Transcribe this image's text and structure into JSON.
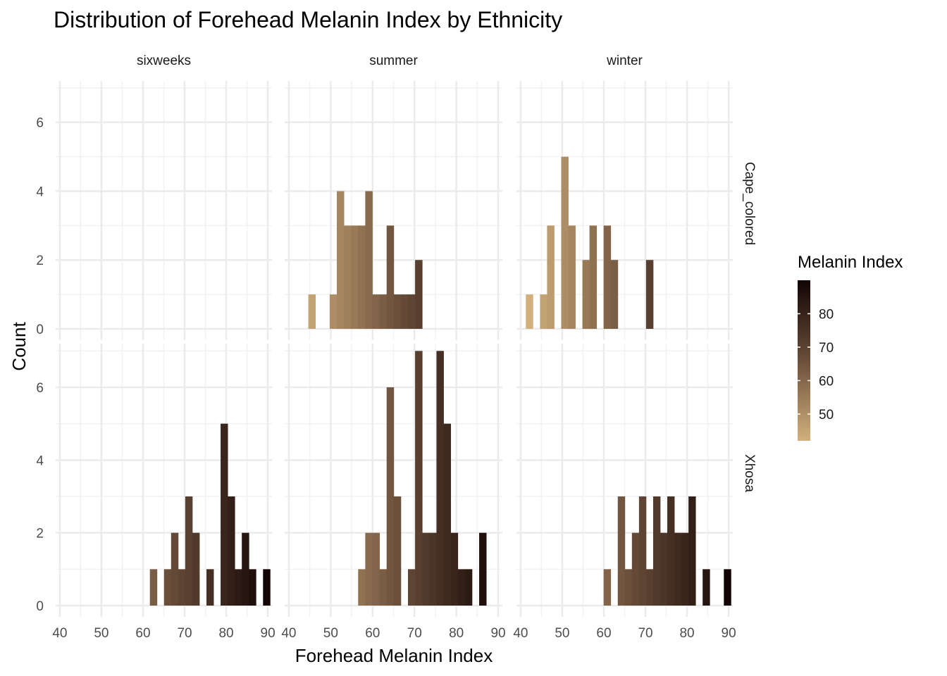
{
  "chart_data": {
    "type": "histogram-faceted",
    "title": "Distribution of Forehead Melanin Index by Ethnicity",
    "xlabel": "Forehead Melanin Index",
    "ylabel": "Count",
    "facet_columns": [
      "sixweeks",
      "summer",
      "winter"
    ],
    "facet_rows": [
      "Cape_colored",
      "Xhosa"
    ],
    "xlim": [
      39,
      91
    ],
    "ylim": [
      0,
      7.2
    ],
    "x_ticks": [
      40,
      50,
      60,
      70,
      80,
      90
    ],
    "y_ticks": [
      0,
      2,
      4,
      6
    ],
    "bin_width": 1.7,
    "legend": {
      "title": "Melanin Index",
      "range": [
        42,
        90
      ],
      "ticks": [
        50,
        60,
        70,
        80
      ],
      "color_low": "#d2b07e",
      "color_mid": "#6a4f3a",
      "color_high": "#120404"
    },
    "panels": [
      {
        "row": "Cape_colored",
        "col": "sixweeks",
        "bins": []
      },
      {
        "row": "Cape_colored",
        "col": "summer",
        "bins": [
          {
            "x": 45.5,
            "count": 1
          },
          {
            "x": 50.6,
            "count": 1
          },
          {
            "x": 52.3,
            "count": 4
          },
          {
            "x": 54.0,
            "count": 3
          },
          {
            "x": 55.7,
            "count": 3
          },
          {
            "x": 57.4,
            "count": 3
          },
          {
            "x": 59.1,
            "count": 4
          },
          {
            "x": 60.8,
            "count": 1
          },
          {
            "x": 62.5,
            "count": 1
          },
          {
            "x": 64.2,
            "count": 3
          },
          {
            "x": 65.9,
            "count": 1
          },
          {
            "x": 67.6,
            "count": 1
          },
          {
            "x": 69.3,
            "count": 1
          },
          {
            "x": 71.0,
            "count": 2
          }
        ]
      },
      {
        "row": "Cape_colored",
        "col": "winter",
        "bins": [
          {
            "x": 42.1,
            "count": 1
          },
          {
            "x": 45.5,
            "count": 1
          },
          {
            "x": 47.2,
            "count": 3
          },
          {
            "x": 50.6,
            "count": 5
          },
          {
            "x": 52.3,
            "count": 3
          },
          {
            "x": 55.7,
            "count": 2
          },
          {
            "x": 57.4,
            "count": 3
          },
          {
            "x": 60.8,
            "count": 3
          },
          {
            "x": 62.5,
            "count": 2
          },
          {
            "x": 71.0,
            "count": 2
          }
        ]
      },
      {
        "row": "Xhosa",
        "col": "sixweeks",
        "bins": [
          {
            "x": 62.5,
            "count": 1
          },
          {
            "x": 65.9,
            "count": 1
          },
          {
            "x": 67.6,
            "count": 2
          },
          {
            "x": 69.3,
            "count": 1
          },
          {
            "x": 71.0,
            "count": 3
          },
          {
            "x": 72.7,
            "count": 2
          },
          {
            "x": 76.1,
            "count": 1
          },
          {
            "x": 79.5,
            "count": 5
          },
          {
            "x": 81.2,
            "count": 3
          },
          {
            "x": 82.9,
            "count": 1
          },
          {
            "x": 84.6,
            "count": 2
          },
          {
            "x": 86.3,
            "count": 1
          },
          {
            "x": 89.7,
            "count": 1
          }
        ]
      },
      {
        "row": "Xhosa",
        "col": "summer",
        "bins": [
          {
            "x": 57.4,
            "count": 1
          },
          {
            "x": 59.1,
            "count": 2
          },
          {
            "x": 60.8,
            "count": 2
          },
          {
            "x": 62.5,
            "count": 1
          },
          {
            "x": 64.2,
            "count": 6
          },
          {
            "x": 65.9,
            "count": 3
          },
          {
            "x": 69.3,
            "count": 1
          },
          {
            "x": 71.0,
            "count": 7
          },
          {
            "x": 72.7,
            "count": 2
          },
          {
            "x": 74.4,
            "count": 2
          },
          {
            "x": 76.1,
            "count": 7
          },
          {
            "x": 77.8,
            "count": 5
          },
          {
            "x": 79.5,
            "count": 2
          },
          {
            "x": 81.2,
            "count": 1
          },
          {
            "x": 82.9,
            "count": 1
          },
          {
            "x": 86.3,
            "count": 2
          }
        ]
      },
      {
        "row": "Xhosa",
        "col": "winter",
        "bins": [
          {
            "x": 60.8,
            "count": 1
          },
          {
            "x": 64.2,
            "count": 3
          },
          {
            "x": 65.9,
            "count": 1
          },
          {
            "x": 67.6,
            "count": 2
          },
          {
            "x": 69.3,
            "count": 3
          },
          {
            "x": 71.0,
            "count": 1
          },
          {
            "x": 72.7,
            "count": 3
          },
          {
            "x": 74.4,
            "count": 2
          },
          {
            "x": 76.1,
            "count": 3
          },
          {
            "x": 77.8,
            "count": 2
          },
          {
            "x": 79.5,
            "count": 2
          },
          {
            "x": 81.2,
            "count": 3
          },
          {
            "x": 84.6,
            "count": 1
          },
          {
            "x": 89.7,
            "count": 1
          }
        ]
      }
    ]
  }
}
